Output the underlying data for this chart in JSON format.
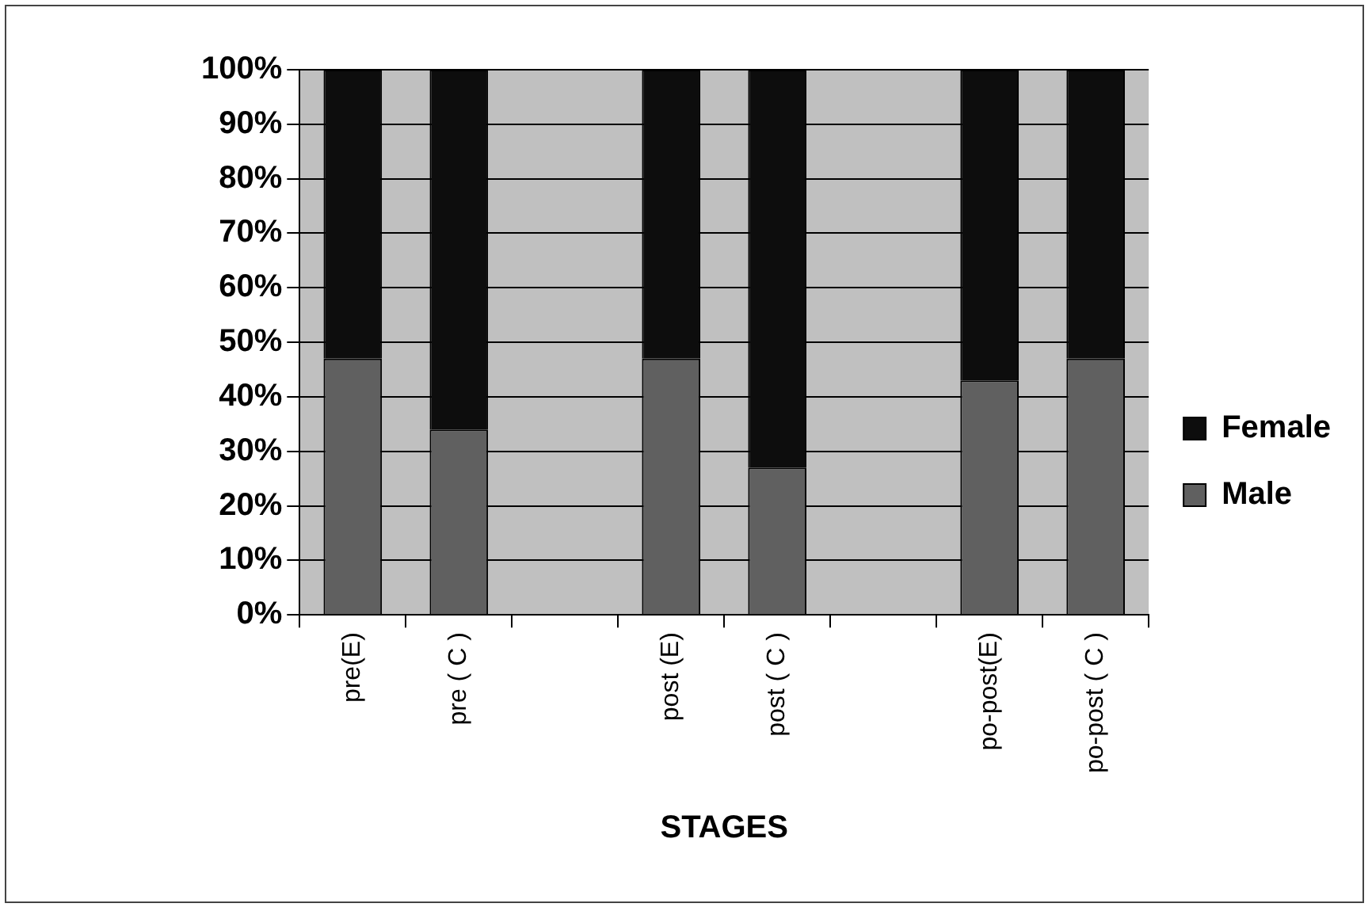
{
  "chart_data": {
    "type": "bar",
    "stacked": true,
    "xlabel": "STAGES",
    "categories": [
      "pre(E)",
      "pre ( C )",
      null,
      "post (E)",
      "post ( C )",
      null,
      "po-post(E)",
      "po-post ( C )"
    ],
    "series": [
      {
        "name": "Male",
        "color": "#606060",
        "values": [
          47,
          34,
          null,
          47,
          27,
          null,
          43,
          47
        ]
      },
      {
        "name": "Female",
        "color": "#0d0d0d",
        "values": [
          53,
          66,
          null,
          53,
          73,
          null,
          57,
          53
        ]
      }
    ],
    "ylim": [
      0,
      100
    ],
    "yticks": [
      {
        "value": 0,
        "label": "0%"
      },
      {
        "value": 10,
        "label": "10%"
      },
      {
        "value": 20,
        "label": "20%"
      },
      {
        "value": 30,
        "label": "30%"
      },
      {
        "value": 40,
        "label": "40%"
      },
      {
        "value": 50,
        "label": "50%"
      },
      {
        "value": 60,
        "label": "60%"
      },
      {
        "value": 70,
        "label": "70%"
      },
      {
        "value": 80,
        "label": "80%"
      },
      {
        "value": 90,
        "label": "90%"
      },
      {
        "value": 100,
        "label": "100%"
      }
    ],
    "grid": "y",
    "legend": "right"
  }
}
